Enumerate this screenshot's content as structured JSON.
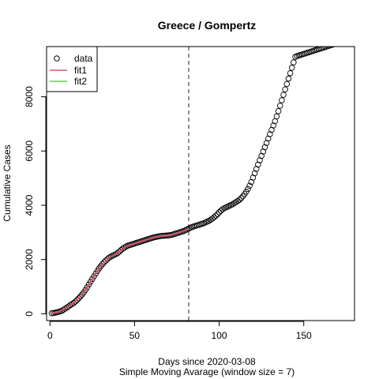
{
  "chart_data": {
    "type": "scatter",
    "title": "Greece / Gompertz",
    "xlabel": "Days since 2020-03-08",
    "xlabel2": "Simple Moving Avarage (window size = 7)",
    "ylabel": "Cumulative Cases",
    "xlim": [
      -2,
      180
    ],
    "ylim": [
      -250,
      9850
    ],
    "xticks": [
      0,
      50,
      100,
      150
    ],
    "yticks": [
      0,
      2000,
      4000,
      6000,
      8000
    ],
    "vline": 82,
    "grid": false,
    "legend_position": "top-left",
    "legend": [
      {
        "label": "data",
        "kind": "point",
        "color": "#000000"
      },
      {
        "label": "fit1",
        "kind": "line",
        "color": "#DF536B"
      },
      {
        "label": "fit2",
        "kind": "line",
        "color": "#61D04F"
      }
    ],
    "series": [
      {
        "name": "data",
        "x": [
          1,
          2,
          3,
          4,
          5,
          6,
          7,
          8,
          9,
          10,
          11,
          12,
          13,
          14,
          15,
          16,
          17,
          18,
          19,
          20,
          21,
          22,
          23,
          24,
          25,
          26,
          27,
          28,
          29,
          30,
          31,
          32,
          33,
          34,
          35,
          36,
          37,
          38,
          39,
          40,
          41,
          42,
          43,
          44,
          45,
          46,
          47,
          48,
          49,
          50,
          51,
          52,
          53,
          54,
          55,
          56,
          57,
          58,
          59,
          60,
          61,
          62,
          63,
          64,
          65,
          66,
          67,
          68,
          69,
          70,
          71,
          72,
          73,
          74,
          75,
          76,
          77,
          78,
          79,
          80,
          81,
          82,
          83,
          84,
          85,
          86,
          87,
          88,
          89,
          90,
          91,
          92,
          93,
          94,
          95,
          96,
          97,
          98,
          99,
          100,
          101,
          102,
          103,
          104,
          105,
          106,
          107,
          108,
          109,
          110,
          111,
          112,
          113,
          114,
          115,
          116,
          117,
          118,
          119,
          120,
          121,
          122,
          123,
          124,
          125,
          126,
          127,
          128,
          129,
          130,
          131,
          132,
          133,
          134,
          135,
          136,
          137,
          138,
          139,
          140,
          141,
          142,
          143,
          144,
          145,
          146,
          147,
          148,
          149,
          150,
          151,
          152,
          153,
          154,
          155,
          156,
          157,
          158,
          159,
          160,
          161,
          162,
          163,
          164,
          165,
          166,
          167,
          168,
          169,
          170,
          171,
          172,
          173,
          174,
          175,
          176,
          177
        ],
        "y": [
          20,
          30,
          40,
          55,
          70,
          90,
          110,
          150,
          190,
          230,
          270,
          320,
          360,
          400,
          450,
          510,
          570,
          640,
          710,
          790,
          880,
          980,
          1080,
          1180,
          1280,
          1380,
          1480,
          1580,
          1670,
          1750,
          1830,
          1900,
          1960,
          2020,
          2070,
          2110,
          2140,
          2170,
          2200,
          2240,
          2290,
          2350,
          2400,
          2440,
          2480,
          2510,
          2530,
          2550,
          2570,
          2590,
          2610,
          2630,
          2650,
          2670,
          2690,
          2710,
          2730,
          2750,
          2770,
          2790,
          2810,
          2825,
          2840,
          2850,
          2860,
          2870,
          2875,
          2880,
          2885,
          2890,
          2900,
          2910,
          2930,
          2950,
          2970,
          2990,
          3010,
          3030,
          3050,
          3080,
          3110,
          3140,
          3170,
          3200,
          3220,
          3240,
          3260,
          3280,
          3300,
          3320,
          3340,
          3370,
          3400,
          3430,
          3470,
          3510,
          3560,
          3610,
          3670,
          3740,
          3800,
          3850,
          3890,
          3920,
          3950,
          3980,
          4010,
          4040,
          4080,
          4120,
          4160,
          4200,
          4260,
          4330,
          4410,
          4500,
          4600,
          4720,
          4860,
          5020,
          5180,
          5340,
          5500,
          5660,
          5820,
          5980,
          6140,
          6300,
          6460,
          6620,
          6780,
          6940,
          7100,
          7280,
          7470,
          7670,
          7870,
          8070,
          8270,
          8470,
          8670,
          8870,
          9070,
          9270,
          9470,
          9500,
          9520,
          9540,
          9560,
          9580,
          9600,
          9620,
          9640,
          9660,
          9680,
          9700,
          9720,
          9740,
          9760,
          9780,
          9800,
          9820,
          9840,
          9860,
          9880,
          9900,
          9920,
          9940,
          9960,
          9980,
          10000,
          10020,
          10040,
          10060,
          10080,
          10100,
          10120
        ]
      },
      {
        "name": "fit1",
        "x": [
          1,
          5,
          10,
          15,
          20,
          25,
          30,
          35,
          40,
          45,
          50,
          55,
          60,
          65,
          70,
          75,
          80,
          82
        ],
        "y": [
          20,
          70,
          230,
          450,
          790,
          1280,
          1750,
          2070,
          2240,
          2480,
          2590,
          2690,
          2790,
          2860,
          2890,
          2970,
          3080,
          3140
        ]
      }
    ]
  }
}
